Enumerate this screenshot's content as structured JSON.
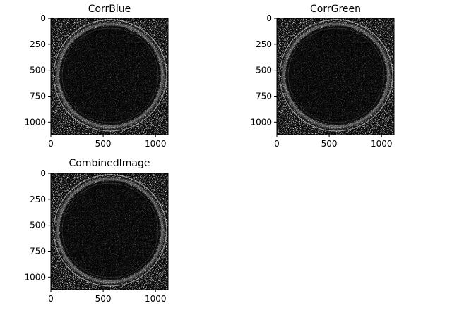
{
  "chart_data": [
    {
      "type": "heatmap",
      "title": "CorrBlue",
      "xlabel": "",
      "ylabel": "",
      "xlim": [
        0,
        1120
      ],
      "ylim": [
        1120,
        0
      ],
      "x_ticks": [
        0,
        500,
        1000
      ],
      "y_ticks": [
        0,
        250,
        500,
        750,
        1000
      ],
      "x_tick_labels": [
        "0",
        "500",
        "1000"
      ],
      "y_tick_labels": [
        "0",
        "250",
        "500",
        "750",
        "1000"
      ],
      "colormap": "gray"
    },
    {
      "type": "heatmap",
      "title": "CorrGreen",
      "xlabel": "",
      "ylabel": "",
      "xlim": [
        0,
        1120
      ],
      "ylim": [
        1120,
        0
      ],
      "x_ticks": [
        0,
        500,
        1000
      ],
      "y_ticks": [
        0,
        250,
        500,
        750,
        1000
      ],
      "x_tick_labels": [
        "0",
        "500",
        "1000"
      ],
      "y_tick_labels": [
        "0",
        "250",
        "500",
        "750",
        "1000"
      ],
      "colormap": "gray"
    },
    {
      "type": "heatmap",
      "title": "CombinedImage",
      "xlabel": "",
      "ylabel": "",
      "xlim": [
        0,
        1120
      ],
      "ylim": [
        1120,
        0
      ],
      "x_ticks": [
        0,
        500,
        1000
      ],
      "y_ticks": [
        0,
        250,
        500,
        750,
        1000
      ],
      "x_tick_labels": [
        "0",
        "500",
        "1000"
      ],
      "y_tick_labels": [
        "0",
        "250",
        "500",
        "750",
        "1000"
      ],
      "colormap": "gray"
    }
  ]
}
